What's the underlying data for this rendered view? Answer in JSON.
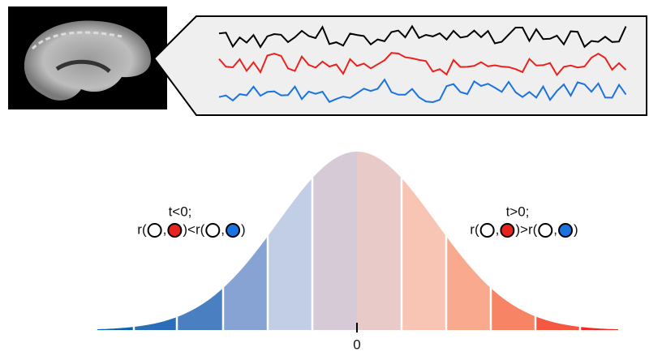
{
  "left_note": {
    "condition": "t<0;",
    "open": "r(",
    "comma_1": ",",
    "relation": ")<r(",
    "comma_2": ",",
    "close": ")"
  },
  "right_note": {
    "condition": "t>0;",
    "open": "r(",
    "comma_1": ",",
    "relation": ")>r(",
    "comma_2": ",",
    "close": ")"
  },
  "axis_label": "0"
}
